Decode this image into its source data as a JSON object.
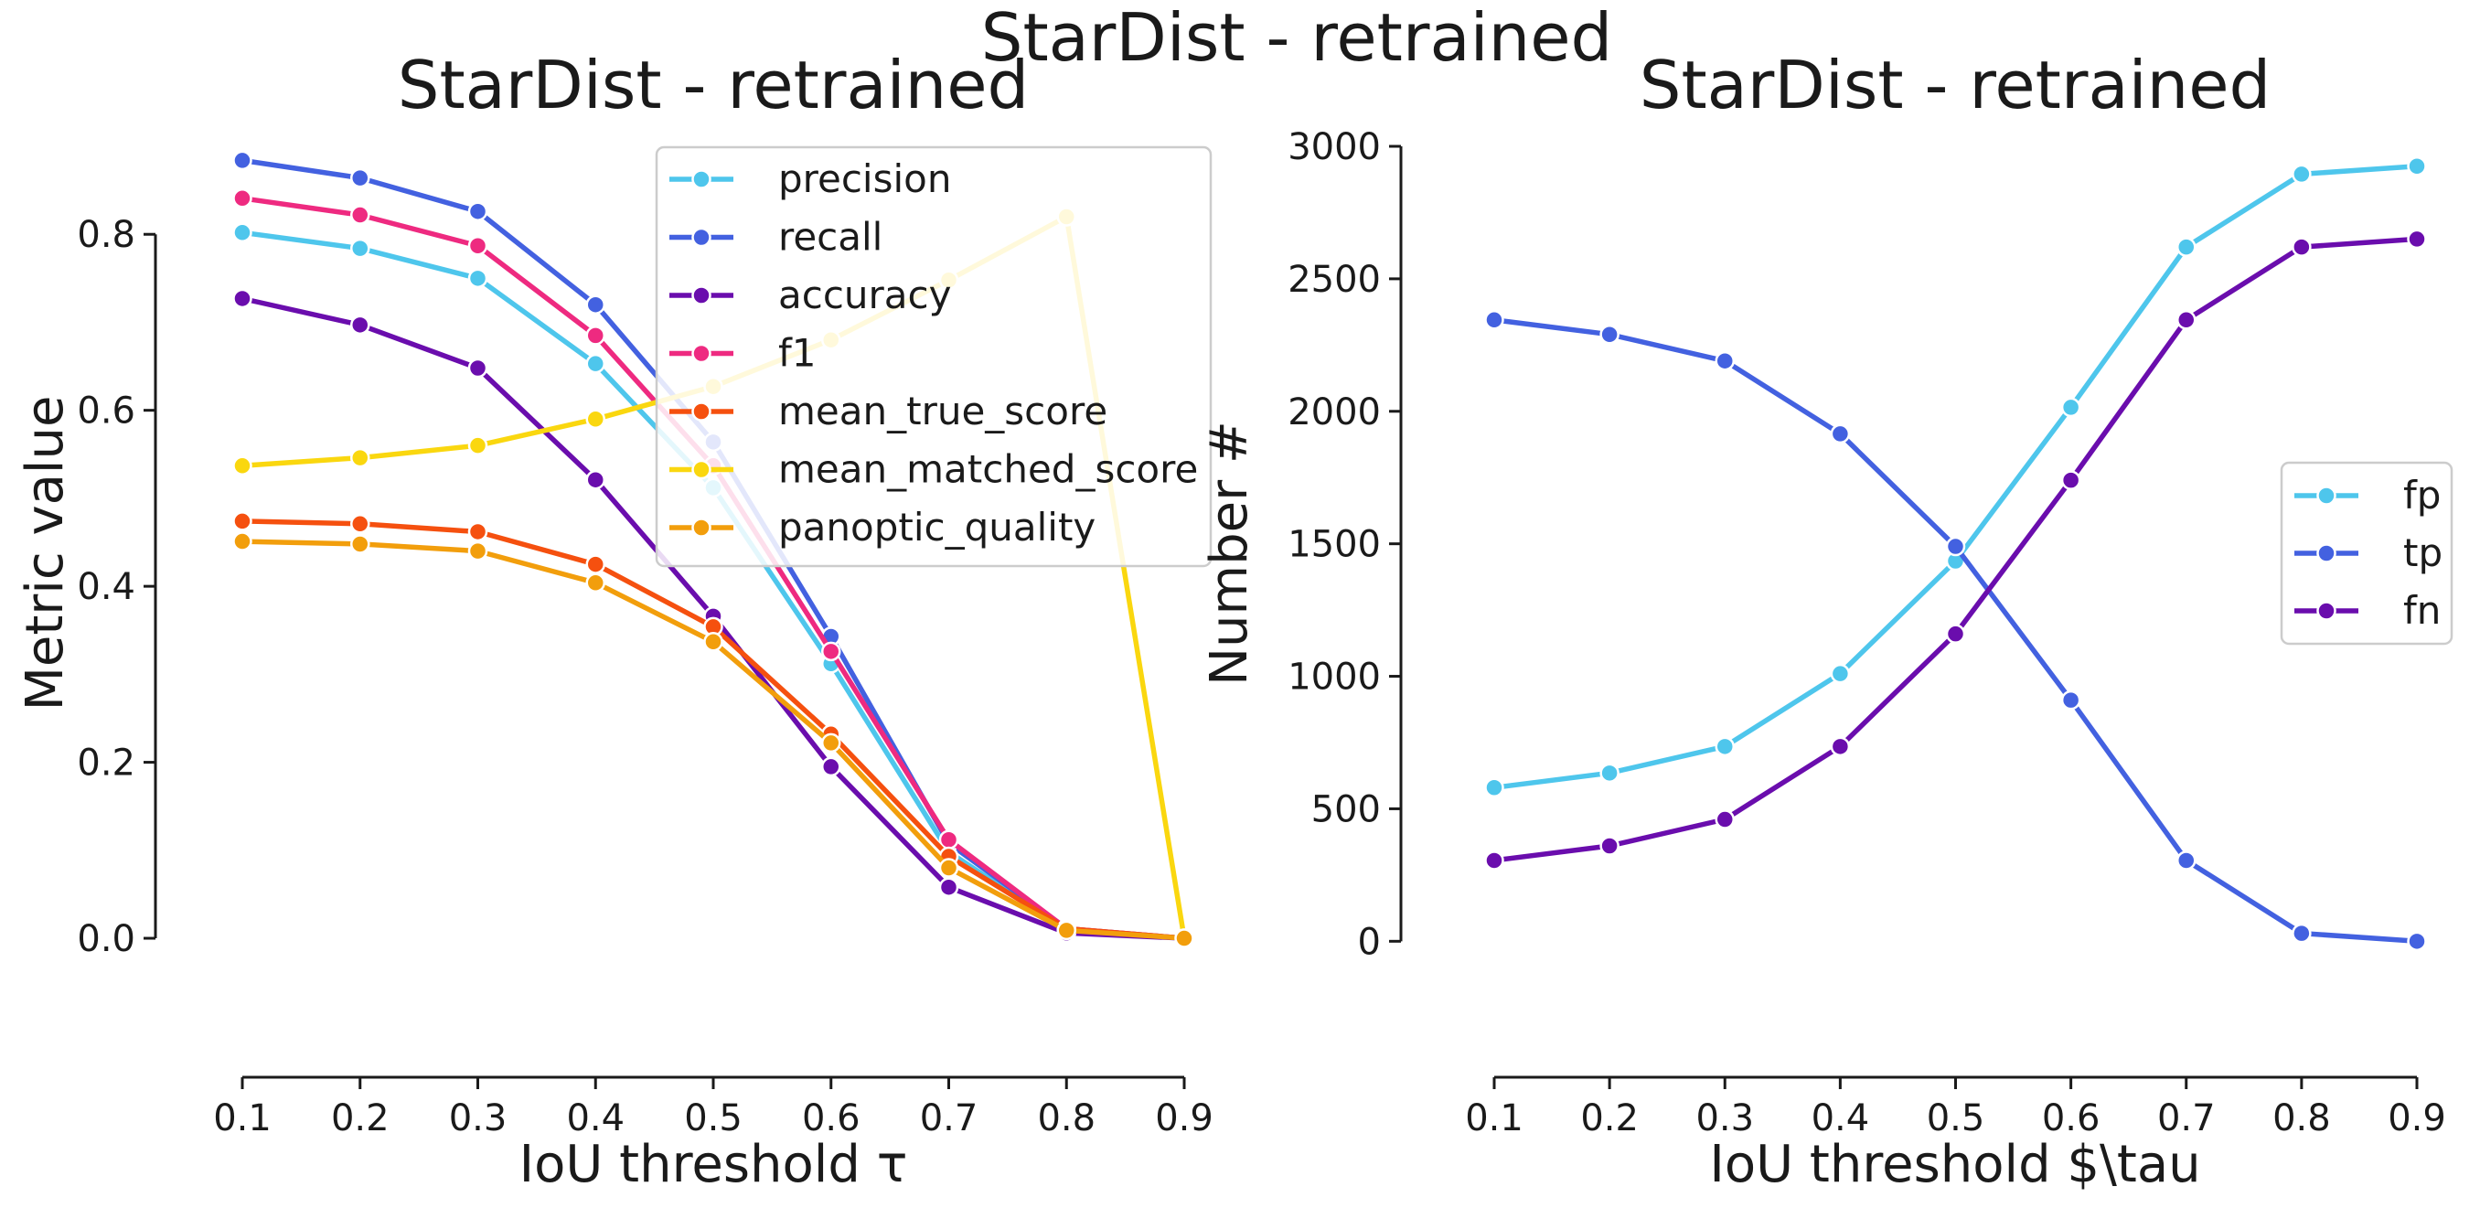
{
  "figure": {
    "suptitle": "StarDist - retrained"
  },
  "chart_data": [
    {
      "type": "line",
      "title": "StarDist - retrained",
      "xlabel": "IoU threshold τ",
      "ylabel": "Metric value",
      "x": [
        0.1,
        0.2,
        0.3,
        0.4,
        0.5,
        0.6,
        0.7,
        0.8,
        0.9
      ],
      "x_tick_labels": [
        "0.1",
        "0.2",
        "0.3",
        "0.4",
        "0.5",
        "0.6",
        "0.7",
        "0.8",
        "0.9"
      ],
      "y_ticks": [
        0.0,
        0.2,
        0.4,
        0.6,
        0.8
      ],
      "y_tick_labels": [
        "0.0",
        "0.2",
        "0.4",
        "0.6",
        "0.8"
      ],
      "ylim": [
        -0.16,
        0.9
      ],
      "xlim": [
        0.1,
        0.9
      ],
      "grid": false,
      "legend_position": "top-right",
      "series": [
        {
          "name": "precision",
          "color": "#4ec6ec",
          "values": [
            0.802,
            0.784,
            0.75,
            0.653,
            0.512,
            0.312,
            0.098,
            0.01,
            0.0
          ]
        },
        {
          "name": "recall",
          "color": "#4361e0",
          "values": [
            0.884,
            0.864,
            0.826,
            0.72,
            0.564,
            0.343,
            0.108,
            0.011,
            0.0
          ]
        },
        {
          "name": "accuracy",
          "color": "#6a0dad",
          "values": [
            0.727,
            0.697,
            0.648,
            0.521,
            0.366,
            0.195,
            0.058,
            0.006,
            0.0
          ]
        },
        {
          "name": "f1",
          "color": "#ee2a80",
          "values": [
            0.841,
            0.822,
            0.787,
            0.685,
            0.537,
            0.326,
            0.112,
            0.011,
            0.0
          ]
        },
        {
          "name": "mean_true_score",
          "color": "#f5500f",
          "values": [
            0.474,
            0.471,
            0.462,
            0.425,
            0.354,
            0.232,
            0.093,
            0.011,
            0.0
          ]
        },
        {
          "name": "mean_matched_score",
          "color": "#fad70f",
          "values": [
            0.537,
            0.546,
            0.56,
            0.59,
            0.627,
            0.68,
            0.748,
            0.82,
            0.0
          ]
        },
        {
          "name": "panoptic_quality",
          "color": "#f29e0c",
          "values": [
            0.451,
            0.448,
            0.44,
            0.404,
            0.337,
            0.222,
            0.08,
            0.009,
            0.0
          ]
        }
      ]
    },
    {
      "type": "line",
      "title": "StarDist - retrained",
      "xlabel": "IoU threshold $\\tau",
      "ylabel": "Number #",
      "x": [
        0.1,
        0.2,
        0.3,
        0.4,
        0.5,
        0.6,
        0.7,
        0.8,
        0.9
      ],
      "x_tick_labels": [
        "0.1",
        "0.2",
        "0.3",
        "0.4",
        "0.5",
        "0.6",
        "0.7",
        "0.8",
        "0.9"
      ],
      "y_ticks": [
        0,
        500,
        1000,
        1500,
        2000,
        2500,
        3000
      ],
      "y_tick_labels": [
        "0",
        "500",
        "1000",
        "1500",
        "2000",
        "2500",
        "3000"
      ],
      "ylim": [
        -520,
        3000
      ],
      "xlim": [
        0.1,
        0.9
      ],
      "grid": false,
      "legend_position": "center-right",
      "series": [
        {
          "name": "fp",
          "color": "#4ec6ec",
          "values": [
            580,
            635,
            735,
            1010,
            1435,
            2015,
            2620,
            2895,
            2925
          ]
        },
        {
          "name": "tp",
          "color": "#4361e0",
          "values": [
            2345,
            2290,
            2190,
            1915,
            1490,
            910,
            305,
            30,
            0
          ]
        },
        {
          "name": "fn",
          "color": "#6a0dad",
          "values": [
            305,
            360,
            460,
            735,
            1160,
            1740,
            2345,
            2620,
            2650
          ]
        }
      ]
    }
  ]
}
